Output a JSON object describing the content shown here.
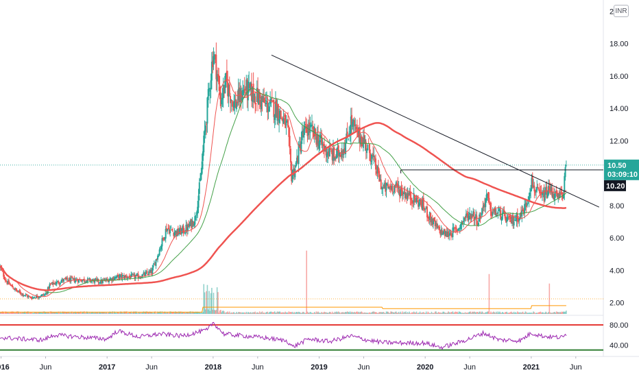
{
  "currency_button": "INR",
  "price_tag": {
    "value": "10.50",
    "countdown": "03:09:10",
    "color": "#26a69a"
  },
  "level_tag": {
    "value": "10.20",
    "color": "#131722"
  },
  "colors": {
    "up": "#26a69a",
    "down": "#ef5350",
    "ma_fast": "#ef5350",
    "ma_mid": "#43a047",
    "ma_slow": "#ef5350",
    "rsi": "#9c27b0",
    "rsi_upper": "#e53935",
    "rsi_lower": "#2e7d32",
    "vol_ma": "#ff9800",
    "trendline": "#131722"
  },
  "chart_data": [
    {
      "type": "candlestick",
      "panel": "price",
      "y_ticks": [
        "20.00",
        "18.00",
        "16.00",
        "14.00",
        "12.00",
        "10.00",
        "8.00",
        "6.00",
        "4.00",
        "2.00"
      ],
      "ylim": [
        1.3,
        20.7
      ],
      "x_ticks": [
        {
          "label": "2016",
          "t": 2016.0,
          "year": true
        },
        {
          "label": "Jun",
          "t": 2016.42,
          "year": false
        },
        {
          "label": "2017",
          "t": 2017.0,
          "year": true
        },
        {
          "label": "Jun",
          "t": 2017.42,
          "year": false
        },
        {
          "label": "2018",
          "t": 2018.0,
          "year": true
        },
        {
          "label": "Jun",
          "t": 2018.42,
          "year": false
        },
        {
          "label": "2019",
          "t": 2019.0,
          "year": true
        },
        {
          "label": "Jun",
          "t": 2019.42,
          "year": false
        },
        {
          "label": "2020",
          "t": 2020.0,
          "year": true
        },
        {
          "label": "Jun",
          "t": 2020.42,
          "year": false
        },
        {
          "label": "2021",
          "t": 2021.0,
          "year": true
        },
        {
          "label": "Jun",
          "t": 2021.42,
          "year": false
        }
      ],
      "xlim": [
        2015.99,
        2021.68
      ],
      "close_keypoints": [
        [
          2015.99,
          4.2
        ],
        [
          2016.05,
          3.3
        ],
        [
          2016.15,
          2.7
        ],
        [
          2016.28,
          2.3
        ],
        [
          2016.42,
          2.5
        ],
        [
          2016.46,
          3.1
        ],
        [
          2016.6,
          3.4
        ],
        [
          2016.8,
          3.4
        ],
        [
          2016.95,
          3.3
        ],
        [
          2017.1,
          3.6
        ],
        [
          2017.3,
          3.6
        ],
        [
          2017.42,
          3.9
        ],
        [
          2017.48,
          5.0
        ],
        [
          2017.56,
          6.6
        ],
        [
          2017.66,
          6.3
        ],
        [
          2017.76,
          6.6
        ],
        [
          2017.83,
          7.2
        ],
        [
          2017.88,
          9.5
        ],
        [
          2017.92,
          12.5
        ],
        [
          2017.96,
          15.0
        ],
        [
          2018.0,
          17.5
        ],
        [
          2018.03,
          16.5
        ],
        [
          2018.07,
          14.5
        ],
        [
          2018.12,
          15.6
        ],
        [
          2018.2,
          14.2
        ],
        [
          2018.3,
          15.2
        ],
        [
          2018.4,
          14.8
        ],
        [
          2018.5,
          14.2
        ],
        [
          2018.6,
          14.0
        ],
        [
          2018.7,
          12.8
        ],
        [
          2018.74,
          9.8
        ],
        [
          2018.78,
          10.5
        ],
        [
          2018.84,
          12.3
        ],
        [
          2018.9,
          12.8
        ],
        [
          2019.0,
          12.0
        ],
        [
          2019.05,
          11.5
        ],
        [
          2019.15,
          11.0
        ],
        [
          2019.25,
          11.8
        ],
        [
          2019.3,
          13.2
        ],
        [
          2019.35,
          12.5
        ],
        [
          2019.42,
          12.0
        ],
        [
          2019.5,
          11.0
        ],
        [
          2019.6,
          9.0
        ],
        [
          2019.7,
          9.2
        ],
        [
          2019.8,
          8.8
        ],
        [
          2019.92,
          8.3
        ],
        [
          2019.98,
          8.0
        ],
        [
          2020.05,
          7.2
        ],
        [
          2020.12,
          6.5
        ],
        [
          2020.2,
          6.2
        ],
        [
          2020.3,
          6.5
        ],
        [
          2020.38,
          7.3
        ],
        [
          2020.45,
          7.5
        ],
        [
          2020.5,
          7.0
        ],
        [
          2020.58,
          8.6
        ],
        [
          2020.62,
          7.6
        ],
        [
          2020.7,
          7.5
        ],
        [
          2020.8,
          7.0
        ],
        [
          2020.9,
          7.4
        ],
        [
          2020.95,
          8.0
        ],
        [
          2021.0,
          9.5
        ],
        [
          2021.05,
          8.8
        ],
        [
          2021.1,
          8.5
        ],
        [
          2021.18,
          9.0
        ],
        [
          2021.25,
          8.4
        ],
        [
          2021.3,
          8.8
        ],
        [
          2021.33,
          10.5
        ]
      ],
      "moving_averages": [
        {
          "window": 20,
          "color_key": "ma_fast",
          "width": 1
        },
        {
          "window": 50,
          "color_key": "ma_mid",
          "width": 1
        },
        {
          "window": 200,
          "color_key": "ma_slow",
          "width": 2.5
        }
      ],
      "trendline": [
        [
          2018.55,
          17.3
        ],
        [
          2021.64,
          7.9
        ]
      ],
      "horizontal_line": {
        "x_start": 2019.77,
        "value": 10.2
      },
      "current_price": 10.5
    },
    {
      "type": "bar",
      "panel": "volume",
      "description_values": "relative volume with spikes",
      "spikes": [
        [
          2018.88,
          1.0
        ],
        [
          2020.6,
          0.63
        ],
        [
          2021.0,
          0.88
        ],
        [
          2021.17,
          0.48
        ],
        [
          2021.33,
          0.22
        ]
      ],
      "avg_level": 0.12
    },
    {
      "type": "line",
      "panel": "rsi",
      "y_ticks": [
        "80.00",
        "40.00"
      ],
      "ylim": [
        20,
        95
      ],
      "bands": [
        80,
        30
      ],
      "keypoints": [
        [
          2015.99,
          55
        ],
        [
          2016.2,
          52
        ],
        [
          2016.4,
          50
        ],
        [
          2016.5,
          60
        ],
        [
          2016.8,
          55
        ],
        [
          2017.0,
          52
        ],
        [
          2017.1,
          68
        ],
        [
          2017.3,
          56
        ],
        [
          2017.5,
          62
        ],
        [
          2017.7,
          58
        ],
        [
          2017.95,
          70
        ],
        [
          2018.0,
          85
        ],
        [
          2018.1,
          62
        ],
        [
          2018.3,
          58
        ],
        [
          2018.5,
          54
        ],
        [
          2018.7,
          48
        ],
        [
          2018.75,
          36
        ],
        [
          2018.9,
          52
        ],
        [
          2019.1,
          47
        ],
        [
          2019.3,
          58
        ],
        [
          2019.45,
          50
        ],
        [
          2019.6,
          45
        ],
        [
          2019.8,
          44
        ],
        [
          2020.0,
          44
        ],
        [
          2020.15,
          35
        ],
        [
          2020.3,
          44
        ],
        [
          2020.45,
          55
        ],
        [
          2020.55,
          64
        ],
        [
          2020.7,
          50
        ],
        [
          2020.9,
          49
        ],
        [
          2021.0,
          64
        ],
        [
          2021.1,
          58
        ],
        [
          2021.2,
          56
        ],
        [
          2021.3,
          55
        ],
        [
          2021.33,
          62
        ]
      ]
    }
  ]
}
